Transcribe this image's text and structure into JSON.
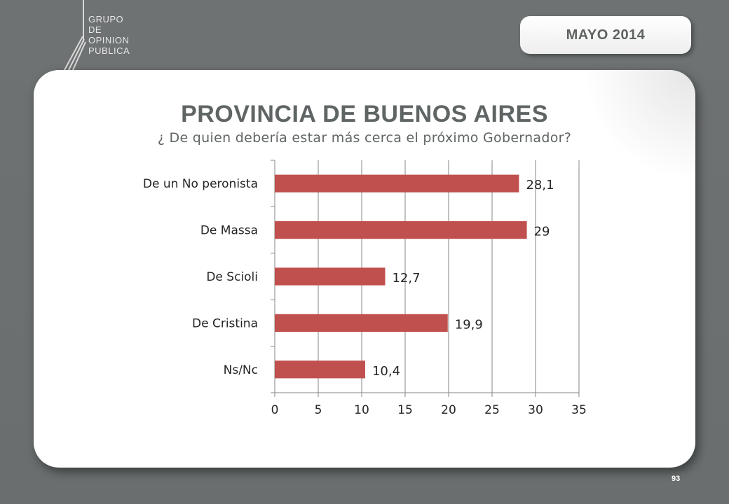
{
  "header": {
    "logo_lines": [
      "GRUPO",
      "DE",
      "OPINION",
      "PUBLICA"
    ],
    "date": "MAYO  2014"
  },
  "slide": {
    "title": "PROVINCIA DE BUENOS AIRES",
    "subtitle": "¿ De quien debería estar más cerca el próximo Gobernador?",
    "page_number": "93"
  },
  "colors": {
    "bar": "#c0504d",
    "axis": "#868686",
    "grid": "#868686",
    "text": "#262626"
  },
  "chart_data": {
    "type": "bar",
    "orientation": "horizontal",
    "categories": [
      "De un No peronista",
      "De Massa",
      "De Scioli",
      "De Cristina",
      "Ns/Nc"
    ],
    "values": [
      28.1,
      29,
      12.7,
      19.9,
      10.4
    ],
    "value_labels": [
      "28,1",
      "29",
      "12,7",
      "19,9",
      "10,4"
    ],
    "xlim": [
      0,
      35
    ],
    "xticks": [
      0,
      5,
      10,
      15,
      20,
      25,
      30,
      35
    ],
    "grid": true
  }
}
